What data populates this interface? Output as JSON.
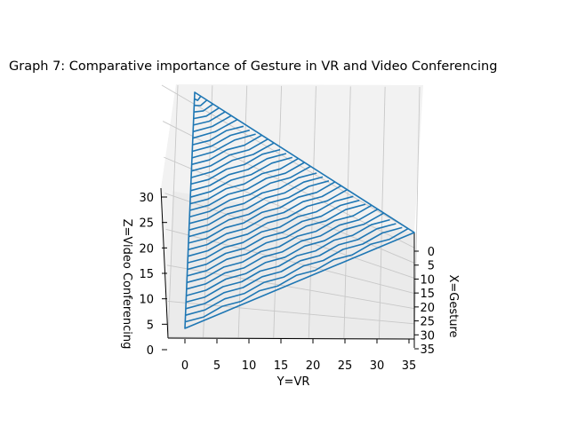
{
  "chart_data": {
    "type": "surface",
    "title": "Graph 7: Comparative importance of Gesture in VR and Video Conferencing",
    "xlabel": "X=Gesture",
    "ylabel": "Y=VR",
    "zlabel": "Z=Video Conferencing",
    "x_ticks": [
      "0",
      "5",
      "10",
      "15",
      "20",
      "25",
      "30",
      "35"
    ],
    "y_ticks": [
      "0",
      "5",
      "10",
      "15",
      "20",
      "25",
      "30",
      "35"
    ],
    "z_ticks": [
      "0",
      "5",
      "10",
      "15",
      "20",
      "25",
      "30"
    ],
    "xlim": [
      0,
      35
    ],
    "ylim": [
      0,
      35
    ],
    "zlim": [
      0,
      35
    ],
    "surface": "plane x + y + z = 35 with x, y, z >= 0",
    "series": [
      {
        "values": [
          [
            0,
            0,
            35
          ],
          [
            0,
            35,
            0
          ],
          [
            35,
            0,
            0
          ]
        ]
      }
    ],
    "color": "#1f77b4",
    "grid": true
  }
}
